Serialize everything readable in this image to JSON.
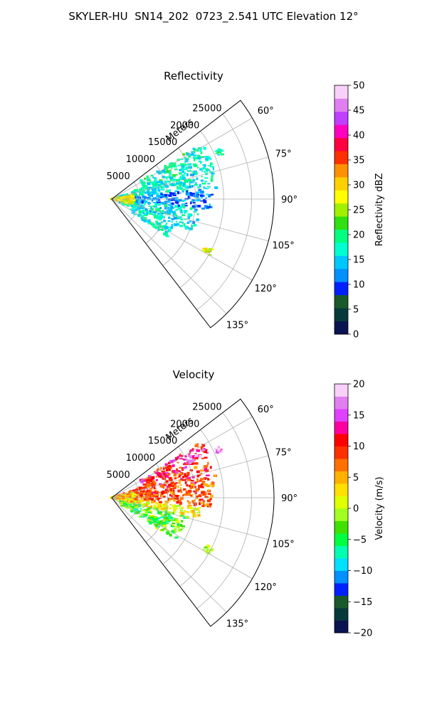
{
  "figure": {
    "title": "SKYLER-HU  SN14_202  0723_2.541 UTC Elevation 12°"
  },
  "chart_data": [
    {
      "type": "heatmap",
      "title": "Reflectivity",
      "projection": "polar-sector",
      "radial_label": "Meters",
      "r_ticks": [
        5000,
        10000,
        15000,
        20000,
        25000
      ],
      "r_tick_labels": [
        "5000",
        "10000",
        "15000",
        "20000",
        "25000"
      ],
      "rlim": [
        0,
        29000
      ],
      "theta_ticks_deg": [
        60,
        75,
        90,
        105,
        120,
        135
      ],
      "theta_tick_labels": [
        "60°",
        "75°",
        "90°",
        "105°",
        "120°",
        "135°"
      ],
      "theta_range_deg": [
        52.5,
        142.5
      ],
      "grid": true,
      "colorbar": {
        "label": "Reflectivity dBZ",
        "range": [
          0,
          50
        ],
        "ticks": [
          0,
          5,
          10,
          15,
          20,
          25,
          30,
          35,
          40,
          45,
          50
        ],
        "tick_labels": [
          "0",
          "5",
          "10",
          "15",
          "20",
          "25",
          "30",
          "35",
          "40",
          "45",
          "50"
        ],
        "colors": [
          "#0a1450",
          "#063a3a",
          "#1a5a2a",
          "#0020ff",
          "#0090ff",
          "#00c8ff",
          "#00ffd0",
          "#00ff80",
          "#30e010",
          "#a0f000",
          "#ffff00",
          "#ffd000",
          "#ff9000",
          "#ff3000",
          "#ff0040",
          "#ff00c0",
          "#c040ff",
          "#e080f0",
          "#f8d0f8"
        ]
      },
      "echo_regions": [
        {
          "theta_deg": [
            58,
            70
          ],
          "r": [
            6000,
            19000
          ],
          "value": 18
        },
        {
          "theta_deg": [
            70,
            84
          ],
          "r": [
            1000,
            19000
          ],
          "value": 17
        },
        {
          "theta_deg": [
            84,
            96
          ],
          "r": [
            3000,
            18000
          ],
          "value": 12
        },
        {
          "theta_deg": [
            96,
            112
          ],
          "r": [
            1500,
            16000
          ],
          "value": 16
        },
        {
          "theta_deg": [
            112,
            124
          ],
          "r": [
            4000,
            12000
          ],
          "value": 17
        },
        {
          "theta_deg": [
            75,
            105
          ],
          "r": [
            0,
            4000
          ],
          "value": 28
        },
        {
          "theta_deg": [
            64,
            68
          ],
          "r": [
            20500,
            21500
          ],
          "value": 19
        },
        {
          "theta_deg": [
            116,
            120
          ],
          "r": [
            18500,
            20500
          ],
          "value": 28
        }
      ]
    },
    {
      "type": "heatmap",
      "title": "Velocity",
      "projection": "polar-sector",
      "radial_label": "Meters",
      "r_ticks": [
        5000,
        10000,
        15000,
        20000,
        25000
      ],
      "r_tick_labels": [
        "5000",
        "10000",
        "15000",
        "20000",
        "25000"
      ],
      "rlim": [
        0,
        29000
      ],
      "theta_ticks_deg": [
        60,
        75,
        90,
        105,
        120,
        135
      ],
      "theta_tick_labels": [
        "60°",
        "75°",
        "90°",
        "105°",
        "120°",
        "135°"
      ],
      "theta_range_deg": [
        52.5,
        142.5
      ],
      "grid": true,
      "colorbar": {
        "label": "Velocity (m/s)",
        "range": [
          -20,
          20
        ],
        "ticks": [
          -20,
          -15,
          -10,
          -5,
          0,
          5,
          10,
          15,
          20
        ],
        "tick_labels": [
          "−20",
          "−15",
          "−10",
          "−5",
          "0",
          "5",
          "10",
          "15",
          "20"
        ],
        "colors": [
          "#0a1450",
          "#063a3a",
          "#1a5a2a",
          "#0020ff",
          "#0090ff",
          "#00e0ff",
          "#00ffb0",
          "#00ff40",
          "#40e000",
          "#a0ff20",
          "#e0ff00",
          "#ffe000",
          "#ffb000",
          "#ff7000",
          "#ff3000",
          "#ff0000",
          "#ff00a0",
          "#e040ff",
          "#e080f0",
          "#f8d0f8"
        ]
      },
      "echo_regions": [
        {
          "theta_deg": [
            58,
            70
          ],
          "r": [
            6000,
            19000
          ],
          "value": 11
        },
        {
          "theta_deg": [
            62,
            66
          ],
          "r": [
            15000,
            18500
          ],
          "value": 16
        },
        {
          "theta_deg": [
            70,
            84
          ],
          "r": [
            1000,
            19000
          ],
          "value": 9
        },
        {
          "theta_deg": [
            84,
            96
          ],
          "r": [
            3000,
            18000
          ],
          "value": 8
        },
        {
          "theta_deg": [
            96,
            104
          ],
          "r": [
            1500,
            16000
          ],
          "value": 2
        },
        {
          "theta_deg": [
            104,
            124
          ],
          "r": [
            1500,
            14000
          ],
          "value": -3
        },
        {
          "theta_deg": [
            75,
            105
          ],
          "r": [
            0,
            4000
          ],
          "value": 4
        },
        {
          "theta_deg": [
            116,
            120
          ],
          "r": [
            18500,
            20500
          ],
          "value": 0
        },
        {
          "theta_deg": [
            64,
            68
          ],
          "r": [
            20500,
            21500
          ],
          "value": 16
        }
      ]
    }
  ]
}
